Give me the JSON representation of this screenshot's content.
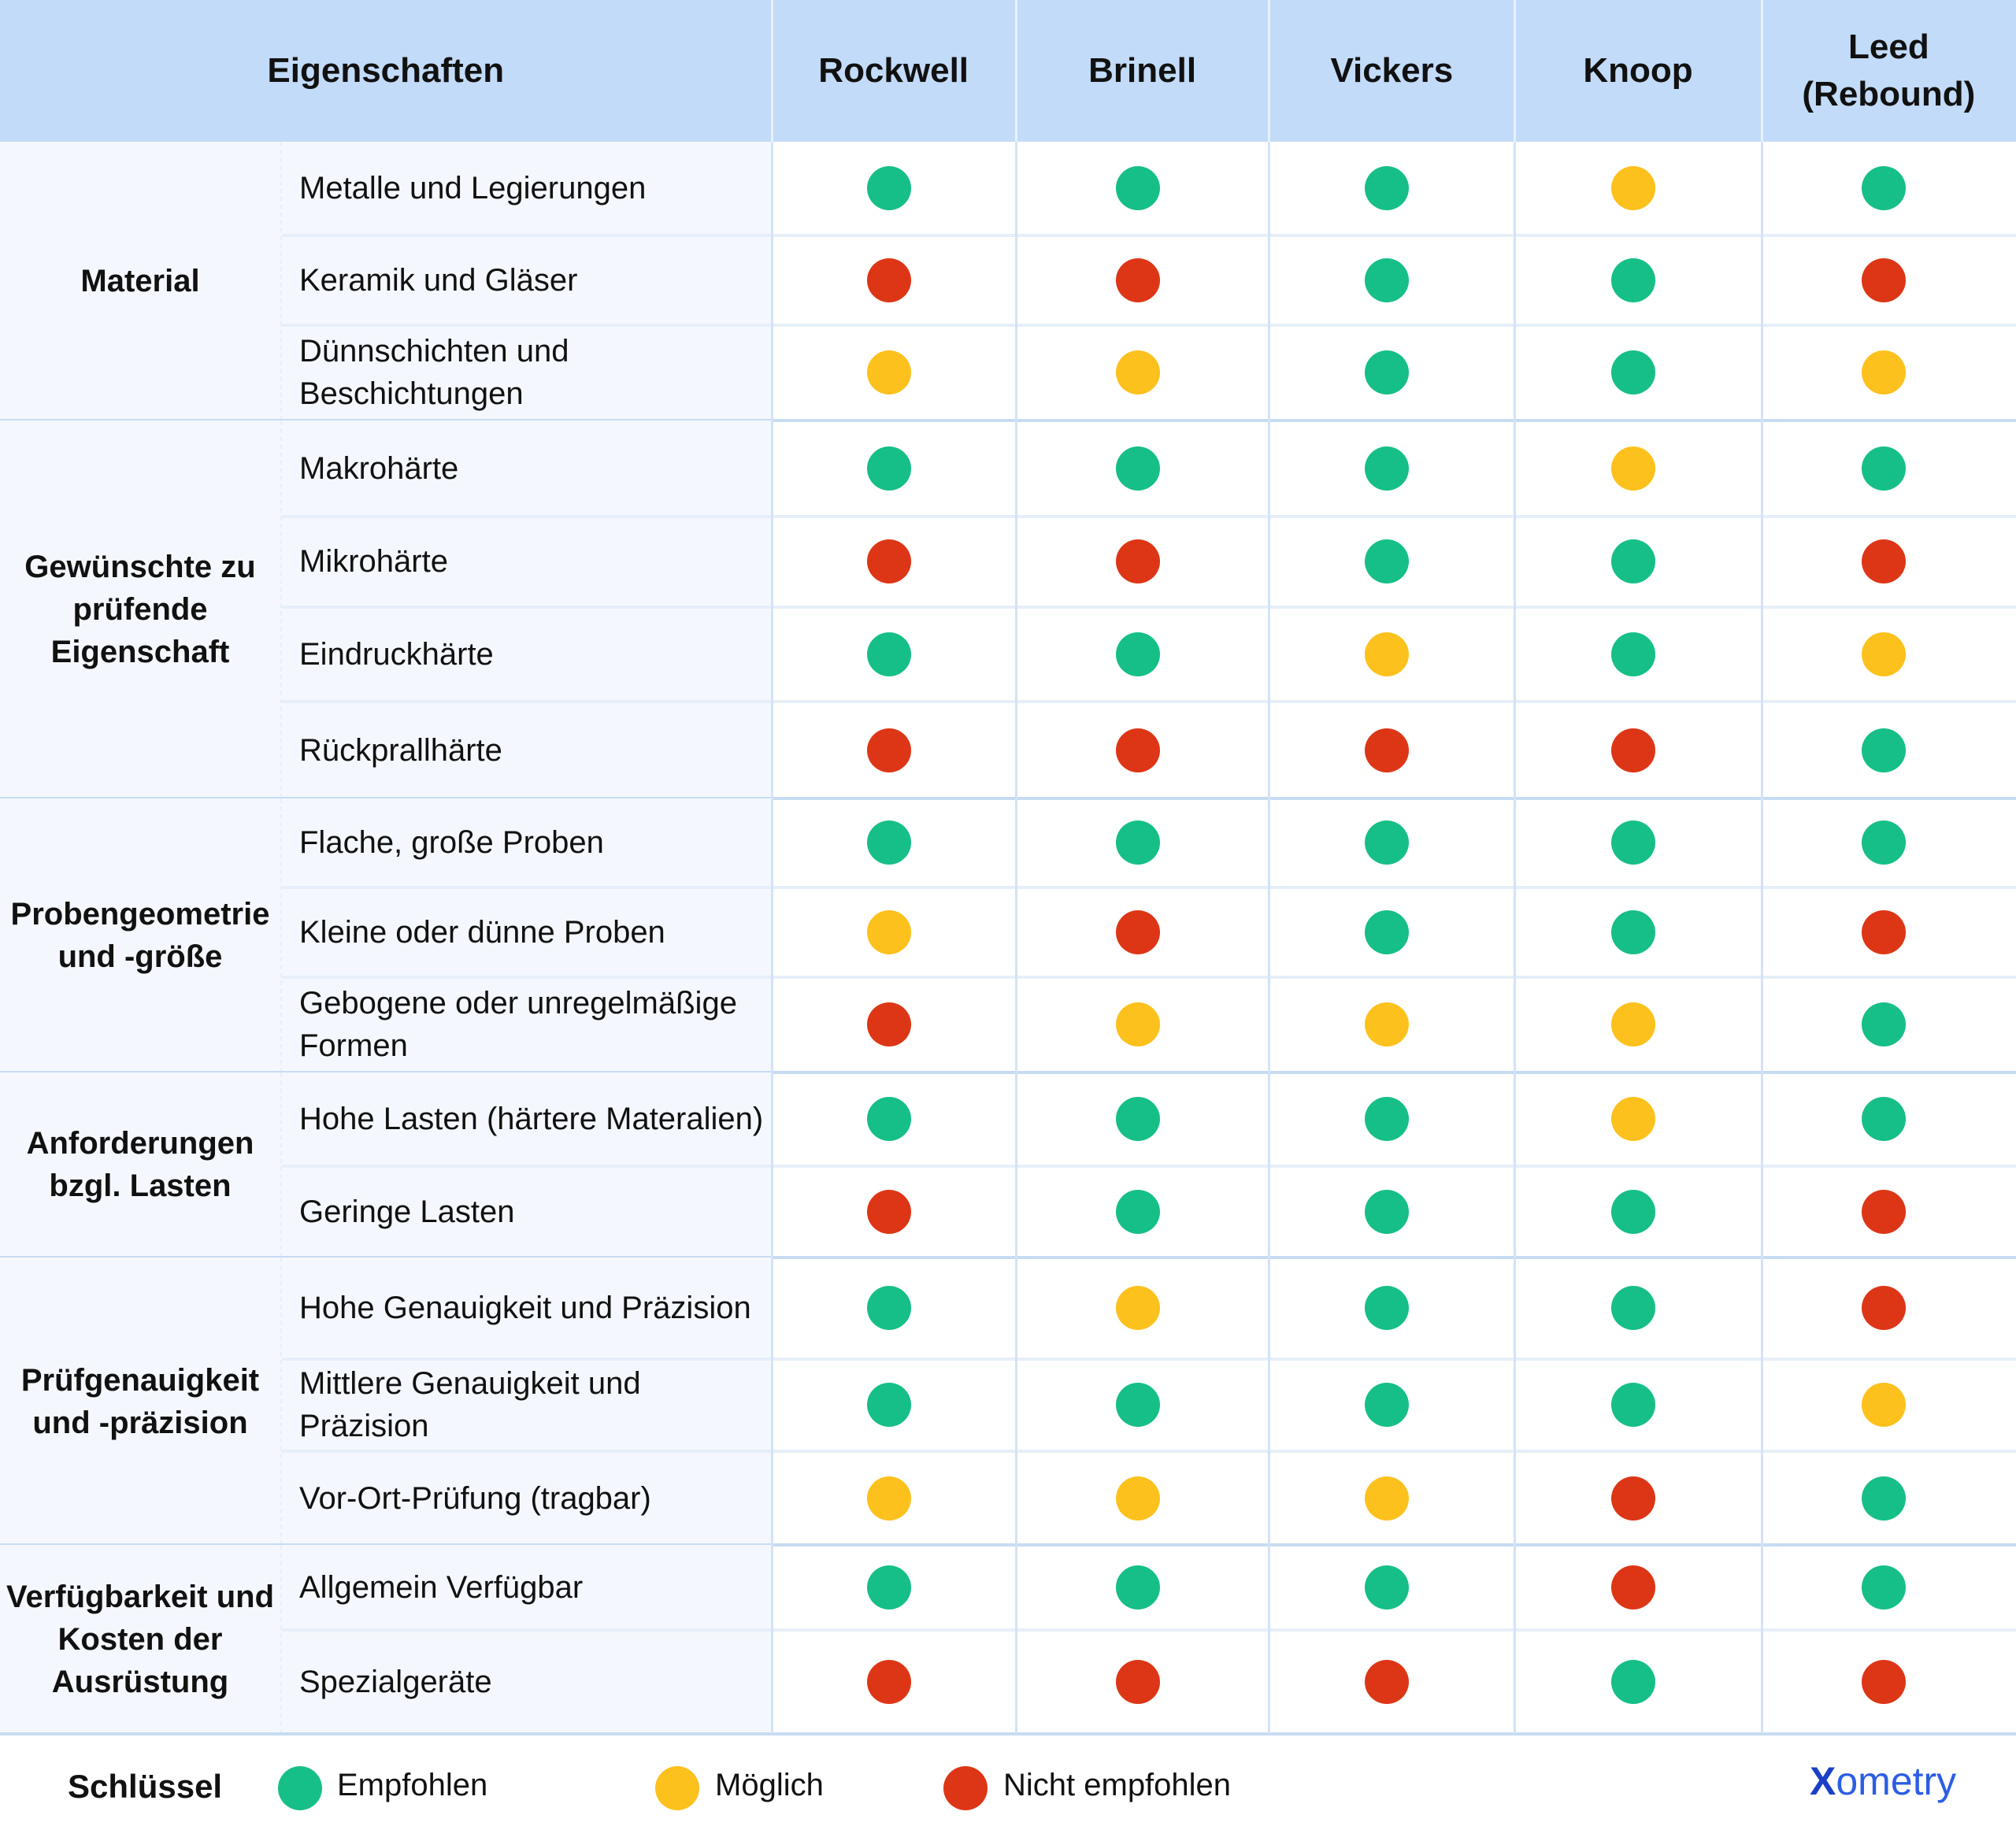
{
  "header": {
    "properties_label": "Eigenschaften",
    "methods": [
      "Rockwell",
      "Brinell",
      "Vickers",
      "Knoop",
      "Leed\n(Rebound)"
    ]
  },
  "status_colors": {
    "recommended": "#16bf87",
    "possible": "#fdc11d",
    "not_recommended": "#dd3616"
  },
  "groups": [
    {
      "label": "Material",
      "rows": [
        {
          "property": "Metalle und Legierungen",
          "ratings": [
            "recommended",
            "recommended",
            "recommended",
            "possible",
            "recommended"
          ]
        },
        {
          "property": "Keramik und Gläser",
          "ratings": [
            "not_recommended",
            "not_recommended",
            "recommended",
            "recommended",
            "not_recommended"
          ]
        },
        {
          "property": "Dünnschichten und Beschichtungen",
          "ratings": [
            "possible",
            "possible",
            "recommended",
            "recommended",
            "possible"
          ]
        }
      ]
    },
    {
      "label": "Gewünschte zu prüfende Eigenschaft",
      "rows": [
        {
          "property": "Makrohärte",
          "ratings": [
            "recommended",
            "recommended",
            "recommended",
            "possible",
            "recommended"
          ]
        },
        {
          "property": "Mikrohärte",
          "ratings": [
            "not_recommended",
            "not_recommended",
            "recommended",
            "recommended",
            "not_recommended"
          ]
        },
        {
          "property": "Eindruckhärte",
          "ratings": [
            "recommended",
            "recommended",
            "possible",
            "recommended",
            "possible"
          ]
        },
        {
          "property": "Rückprallhärte",
          "ratings": [
            "not_recommended",
            "not_recommended",
            "not_recommended",
            "not_recommended",
            "recommended"
          ]
        }
      ]
    },
    {
      "label": "Probengeometrie und -größe",
      "rows": [
        {
          "property": "Flache, große Proben",
          "ratings": [
            "recommended",
            "recommended",
            "recommended",
            "recommended",
            "recommended"
          ]
        },
        {
          "property": "Kleine oder dünne Proben",
          "ratings": [
            "possible",
            "not_recommended",
            "recommended",
            "recommended",
            "not_recommended"
          ]
        },
        {
          "property": "Gebogene oder unregelmäßige Formen",
          "ratings": [
            "not_recommended",
            "possible",
            "possible",
            "possible",
            "recommended"
          ]
        }
      ]
    },
    {
      "label": "Anforderungen bzgl. Lasten",
      "rows": [
        {
          "property": "Hohe Lasten (härtere Materalien)",
          "ratings": [
            "recommended",
            "recommended",
            "recommended",
            "possible",
            "recommended"
          ]
        },
        {
          "property": "Geringe Lasten",
          "ratings": [
            "not_recommended",
            "recommended",
            "recommended",
            "recommended",
            "not_recommended"
          ]
        }
      ]
    },
    {
      "label": "Prüfgenauigkeit und -präzision",
      "rows": [
        {
          "property": "Hohe Genauigkeit und Präzision",
          "ratings": [
            "recommended",
            "possible",
            "recommended",
            "recommended",
            "not_recommended"
          ]
        },
        {
          "property": "Mittlere Genauigkeit und Präzision",
          "ratings": [
            "recommended",
            "recommended",
            "recommended",
            "recommended",
            "possible"
          ]
        },
        {
          "property": "Vor-Ort-Prüfung (tragbar)",
          "ratings": [
            "possible",
            "possible",
            "possible",
            "not_recommended",
            "recommended"
          ]
        }
      ]
    },
    {
      "label": "Verfügbarkeit und Kosten der Ausrüstung",
      "rows": [
        {
          "property": "Allgemein Verfügbar",
          "ratings": [
            "recommended",
            "recommended",
            "recommended",
            "not_recommended",
            "recommended"
          ]
        },
        {
          "property": "Spezialgeräte",
          "ratings": [
            "not_recommended",
            "not_recommended",
            "not_recommended",
            "recommended",
            "not_recommended"
          ]
        }
      ]
    }
  ],
  "legend": {
    "title": "Schlüssel",
    "items": [
      {
        "key": "recommended",
        "label": "Empfohlen"
      },
      {
        "key": "possible",
        "label": "Möglich"
      },
      {
        "key": "not_recommended",
        "label": "Nicht empfohlen"
      }
    ]
  },
  "logo": {
    "mark": "X",
    "text": "ometry"
  },
  "chart_data": {
    "type": "table",
    "title": "",
    "columns": [
      "Eigenschaften",
      "Rockwell",
      "Brinell",
      "Vickers",
      "Knoop",
      "Leed (Rebound)"
    ],
    "legend": {
      "recommended": "Empfohlen",
      "possible": "Möglich",
      "not_recommended": "Nicht empfohlen"
    },
    "rows": [
      [
        "Material",
        "Metalle und Legierungen",
        "recommended",
        "recommended",
        "recommended",
        "possible",
        "recommended"
      ],
      [
        "Material",
        "Keramik und Gläser",
        "not_recommended",
        "not_recommended",
        "recommended",
        "recommended",
        "not_recommended"
      ],
      [
        "Material",
        "Dünnschichten und Beschichtungen",
        "possible",
        "possible",
        "recommended",
        "recommended",
        "possible"
      ],
      [
        "Gewünschte zu prüfende Eigenschaft",
        "Makrohärte",
        "recommended",
        "recommended",
        "recommended",
        "possible",
        "recommended"
      ],
      [
        "Gewünschte zu prüfende Eigenschaft",
        "Mikrohärte",
        "not_recommended",
        "not_recommended",
        "recommended",
        "recommended",
        "not_recommended"
      ],
      [
        "Gewünschte zu prüfende Eigenschaft",
        "Eindruckhärte",
        "recommended",
        "recommended",
        "possible",
        "recommended",
        "possible"
      ],
      [
        "Gewünschte zu prüfende Eigenschaft",
        "Rückprallhärte",
        "not_recommended",
        "not_recommended",
        "not_recommended",
        "not_recommended",
        "recommended"
      ],
      [
        "Probengeometrie und -größe",
        "Flache, große Proben",
        "recommended",
        "recommended",
        "recommended",
        "recommended",
        "recommended"
      ],
      [
        "Probengeometrie und -größe",
        "Kleine oder dünne Proben",
        "possible",
        "not_recommended",
        "recommended",
        "recommended",
        "not_recommended"
      ],
      [
        "Probengeometrie und -größe",
        "Gebogene oder unregelmäßige Formen",
        "not_recommended",
        "possible",
        "possible",
        "possible",
        "recommended"
      ],
      [
        "Anforderungen bzgl. Lasten",
        "Hohe Lasten (härtere Materalien)",
        "recommended",
        "recommended",
        "recommended",
        "possible",
        "recommended"
      ],
      [
        "Anforderungen bzgl. Lasten",
        "Geringe Lasten",
        "not_recommended",
        "recommended",
        "recommended",
        "recommended",
        "not_recommended"
      ],
      [
        "Prüfgenauigkeit und -präzision",
        "Hohe Genauigkeit und Präzision",
        "recommended",
        "possible",
        "recommended",
        "recommended",
        "not_recommended"
      ],
      [
        "Prüfgenauigkeit und -präzision",
        "Mittlere Genauigkeit und Präzision",
        "recommended",
        "recommended",
        "recommended",
        "recommended",
        "possible"
      ],
      [
        "Prüfgenauigkeit und -präzision",
        "Vor-Ort-Prüfung (tragbar)",
        "possible",
        "possible",
        "possible",
        "not_recommended",
        "recommended"
      ],
      [
        "Verfügbarkeit und Kosten der Ausrüstung",
        "Allgemein Verfügbar",
        "recommended",
        "recommended",
        "recommended",
        "not_recommended",
        "recommended"
      ],
      [
        "Verfügbarkeit und Kosten der Ausrüstung",
        "Spezialgeräte",
        "not_recommended",
        "not_recommended",
        "not_recommended",
        "recommended",
        "not_recommended"
      ]
    ]
  }
}
